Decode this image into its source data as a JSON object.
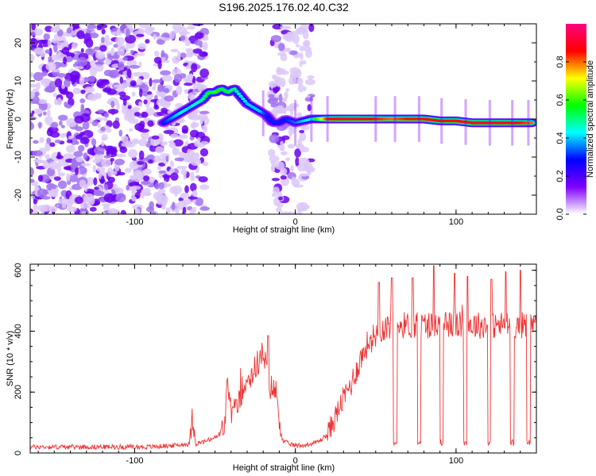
{
  "title": "S196.2025.176.02.40.C32",
  "chart_data": [
    {
      "type": "heatmap",
      "xlabel": "Height of straight line (km)",
      "ylabel": "Frequency (Hz)",
      "xlim": [
        -165,
        150
      ],
      "ylim": [
        -25,
        25
      ],
      "xticks": [
        -100,
        0,
        100
      ],
      "yticks": [
        -20,
        -10,
        0,
        10,
        20
      ],
      "colorbar": {
        "label": "Normalized spectral amplitude",
        "range": [
          0,
          1
        ],
        "ticks": [
          0.0,
          0.2,
          0.4,
          0.6,
          0.8
        ],
        "stops": [
          "#ffffff",
          "#7f00ff",
          "#0000ff",
          "#00ffff",
          "#00ff00",
          "#ffff00",
          "#ff0000",
          "#ff0080"
        ]
      },
      "ridge": {
        "x": [
          -82,
          -78,
          -74,
          -70,
          -66,
          -62,
          -58,
          -54,
          -50,
          -46,
          -42,
          -38,
          -34,
          -30,
          -26,
          -22,
          -18,
          -14,
          -10,
          -6,
          0,
          10,
          20,
          30,
          40,
          50,
          60,
          70,
          80,
          90,
          100,
          110,
          120,
          130,
          140,
          148
        ],
        "freq": [
          -1,
          0,
          1,
          2,
          3,
          4,
          5,
          7,
          7,
          8,
          7,
          8,
          6,
          4,
          3,
          2,
          1,
          -1,
          -1,
          0,
          -1,
          0,
          0,
          0,
          0,
          0,
          0,
          0,
          0,
          -0.5,
          -0.5,
          -1,
          -1,
          -1,
          -1,
          -1
        ],
        "amplitude": [
          0.3,
          0.35,
          0.4,
          0.45,
          0.4,
          0.45,
          0.5,
          0.55,
          0.6,
          0.55,
          0.55,
          0.5,
          0.45,
          0.4,
          0.4,
          0.4,
          0.3,
          0.3,
          0.3,
          0.3,
          0.35,
          0.45,
          0.85,
          0.9,
          0.9,
          0.85,
          0.8,
          0.85,
          0.85,
          0.85,
          0.9,
          0.9,
          0.9,
          0.9,
          0.85,
          0.8
        ]
      }
    },
    {
      "type": "line",
      "xlabel": "Height of straight line (km)",
      "ylabel": "SNR (10 * v/v)",
      "xlim": [
        -165,
        150
      ],
      "ylim": [
        0,
        620
      ],
      "xticks": [
        -100,
        0,
        100
      ],
      "yticks": [
        0,
        200,
        400,
        600
      ],
      "color": "#ee3333",
      "series": [
        {
          "x": [
            -165,
            -150,
            -130,
            -110,
            -90,
            -75,
            -66,
            -64,
            -62,
            -55,
            -48,
            -44,
            -42,
            -40,
            -36,
            -32,
            -28,
            -24,
            -20,
            -16,
            -12,
            -8,
            -4,
            0,
            5,
            10,
            15,
            20,
            25,
            30,
            35,
            40,
            45,
            50,
            55,
            60,
            70,
            80,
            90,
            100,
            110,
            120,
            130,
            140,
            150
          ],
          "y": [
            20,
            20,
            20,
            20,
            20,
            25,
            30,
            120,
            30,
            40,
            55,
            90,
            240,
            130,
            150,
            230,
            250,
            290,
            330,
            220,
            200,
            40,
            30,
            25,
            25,
            30,
            40,
            60,
            120,
            180,
            230,
            300,
            360,
            390,
            410,
            420,
            420,
            420,
            420,
            420,
            420,
            420,
            420,
            420,
            420
          ]
        }
      ],
      "dropouts_x": [
        62,
        77,
        91,
        106,
        121,
        135,
        145
      ],
      "spikes": [
        {
          "x": -17,
          "y": 385
        },
        {
          "x": 52,
          "y": 560
        },
        {
          "x": 60,
          "y": 575
        },
        {
          "x": 73,
          "y": 575
        },
        {
          "x": 86,
          "y": 615
        },
        {
          "x": 99,
          "y": 590
        },
        {
          "x": 107,
          "y": 580
        },
        {
          "x": 122,
          "y": 570
        },
        {
          "x": 131,
          "y": 595
        },
        {
          "x": 140,
          "y": 600
        }
      ]
    }
  ]
}
